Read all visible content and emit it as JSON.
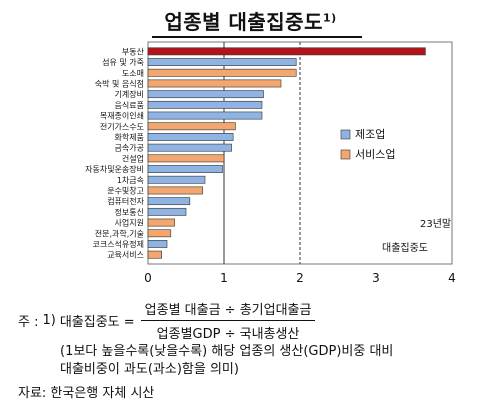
{
  "title": "업종별 대출집중도",
  "title_sup": "1)",
  "chart_data": {
    "type": "bar",
    "orientation": "horizontal",
    "categories": [
      "부동산",
      "섬유 및 가죽",
      "도소매",
      "숙박 및 음식점",
      "기계장비",
      "음식료품",
      "목재종이인쇄",
      "전기가스수도",
      "화학제품",
      "금속가공",
      "건설업",
      "자동차및운송장비",
      "1차금속",
      "운수및창고",
      "컴퓨터전자",
      "정보통신",
      "사업지원",
      "전문,과학,기술",
      "코크스석유정제",
      "교육서비스"
    ],
    "series": [
      {
        "name": "제조업",
        "color": "#8fb4e3",
        "values": [
          null,
          1.95,
          null,
          null,
          1.52,
          1.5,
          1.5,
          null,
          1.12,
          1.1,
          null,
          0.98,
          0.75,
          null,
          0.55,
          0.5,
          null,
          null,
          0.25,
          null
        ]
      },
      {
        "name": "서비스업",
        "color": "#f3a66e",
        "values": [
          null,
          null,
          1.95,
          1.75,
          null,
          null,
          null,
          1.15,
          null,
          null,
          1.0,
          null,
          null,
          0.72,
          null,
          null,
          0.35,
          0.3,
          null,
          0.18
        ]
      },
      {
        "name": "",
        "color": "#b3141c",
        "values": [
          3.65,
          null,
          null,
          null,
          null,
          null,
          null,
          null,
          null,
          null,
          null,
          null,
          null,
          null,
          null,
          null,
          null,
          null,
          null,
          null
        ]
      }
    ],
    "xlim": [
      0,
      4
    ],
    "xticks": [
      0,
      1,
      2,
      3,
      4
    ],
    "reference_lines": [
      1,
      2
    ],
    "annotation": [
      "23년말",
      "대출집중도"
    ],
    "legend_position": "right"
  },
  "note": {
    "label": "주 :",
    "index": "1)",
    "term": "대출집중도 =",
    "numerator": "업종별 대출금 ÷ 총기업대출금",
    "denominator": "업종별GDP ÷ 국내총생산",
    "explain_line1": "(1보다 높을수록(낮을수록) 해당 업종의 생산(GDP)비중 대비",
    "explain_line2": "대출비중이 과도(과소)함을 의미)"
  },
  "source": "자료: 한국은행 자체 시산"
}
